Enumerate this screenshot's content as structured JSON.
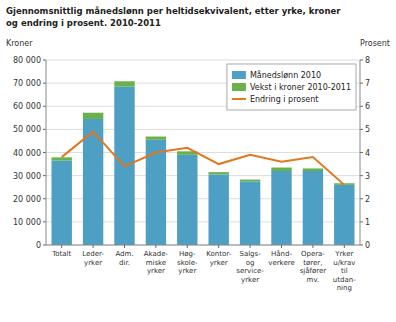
{
  "chart_data": {
    "type": "bar",
    "title": "Gjennomsnittlig månedslønn per heltidsekvivalent, etter yrke, kroner",
    "subtitle": "og endring i prosent. 2010-2011",
    "ylabel": "Kroner",
    "y2label": "Prosent",
    "categories": [
      "Totalt",
      "Leder-\nyrker",
      "Adm.\ndir.",
      "Akade-\nmiske\nyrker",
      "Høg-\nskole-\nyrker",
      "Kontor-\nyrker",
      "Salgs-\nog\nservice-\nyrker",
      "Hånd-\nverkere",
      "Opera-\ntører,\nsjåfører\nmv.",
      "Yrker\nu/krav\ntil\nutdan-\nning"
    ],
    "series": [
      {
        "name": "Månedslønn 2010",
        "type": "bar",
        "color": "#4d9fc4",
        "values": [
          36500,
          54500,
          68500,
          45500,
          39000,
          30500,
          27500,
          32000,
          32000,
          26000
        ]
      },
      {
        "name": "Vekst i kroner 2010-2011",
        "type": "bar",
        "color": "#6ab04c",
        "values": [
          1400,
          2700,
          2300,
          1400,
          1500,
          1000,
          800,
          1500,
          1100,
          700
        ]
      },
      {
        "name": "Endring i prosent",
        "type": "line",
        "axis": "y2",
        "color": "#e07820",
        "values": [
          3.8,
          4.9,
          3.4,
          4.0,
          4.2,
          3.5,
          3.9,
          3.6,
          3.8,
          2.6
        ]
      }
    ],
    "stacked": true,
    "ylim": [
      0,
      80000
    ],
    "yticks": [
      0,
      {
        "value": 10000,
        "label": "10 000"
      },
      {
        "value": 20000,
        "label": "20 000"
      },
      {
        "value": 30000,
        "label": "30 000"
      },
      {
        "value": 40000,
        "label": "40 000"
      },
      {
        "value": 50000,
        "label": "50 000"
      },
      {
        "value": 60000,
        "label": "60 000"
      },
      {
        "value": 70000,
        "label": "70 000"
      },
      {
        "value": 80000,
        "label": "80 000"
      }
    ],
    "y2lim": [
      0,
      8
    ],
    "y2ticks": [
      0,
      1,
      2,
      3,
      4,
      5,
      6,
      7,
      8
    ],
    "grid": true,
    "legend": "upper right"
  }
}
